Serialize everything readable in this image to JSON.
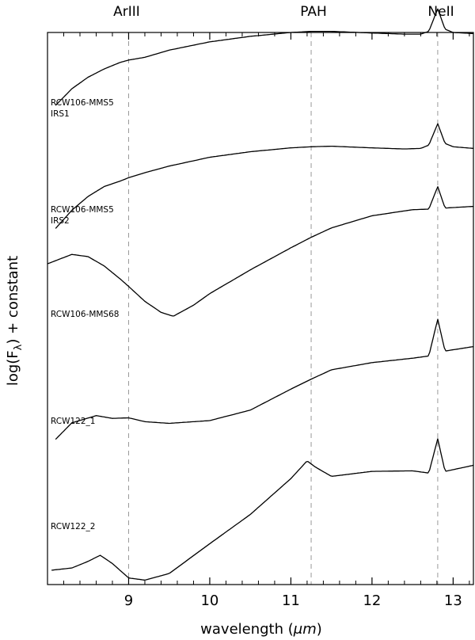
{
  "chart_data": {
    "type": "line",
    "xlabel_prefix": "wavelength (",
    "xlabel_unit": "μm",
    "xlabel_suffix": ")",
    "ylabel_main": "log(F",
    "ylabel_sub": "λ",
    "ylabel_tail": ") + constant",
    "xlim": [
      8.0,
      13.25
    ],
    "ylim": [
      0,
      10
    ],
    "x_ticks": [
      9,
      10,
      11,
      12,
      13
    ],
    "grid": false,
    "legend": "none",
    "lines": [
      {
        "label": "ArIII",
        "x": 9.0
      },
      {
        "label": "PAH",
        "x": 11.25
      },
      {
        "label": "NeII",
        "x": 12.81
      }
    ],
    "series": [
      {
        "name": "RCW106-MMS5\nIRS1",
        "x": [
          8.1,
          8.3,
          8.5,
          8.7,
          8.9,
          9.0,
          9.2,
          9.5,
          10.0,
          10.5,
          11.0,
          11.25,
          11.5,
          12.0,
          12.4,
          12.6,
          12.7,
          12.81,
          12.9,
          13.0,
          13.25
        ],
        "y": [
          8.68,
          8.98,
          9.19,
          9.34,
          9.46,
          9.5,
          9.55,
          9.68,
          9.83,
          9.93,
          10.0,
          10.02,
          10.02,
          9.99,
          9.97,
          9.97,
          10.02,
          10.43,
          10.06,
          10.0,
          9.98
        ]
      },
      {
        "name": "RCW106-MMS5\nIRS2",
        "x": [
          8.1,
          8.3,
          8.5,
          8.7,
          8.9,
          9.0,
          9.2,
          9.5,
          10.0,
          10.5,
          11.0,
          11.25,
          11.5,
          12.0,
          12.4,
          12.6,
          12.7,
          12.81,
          12.9,
          13.0,
          13.25
        ],
        "y": [
          6.45,
          6.78,
          7.03,
          7.21,
          7.31,
          7.37,
          7.46,
          7.58,
          7.74,
          7.84,
          7.91,
          7.93,
          7.94,
          7.91,
          7.89,
          7.9,
          7.96,
          8.35,
          7.99,
          7.93,
          7.9
        ]
      },
      {
        "name": "RCW106-MMS68",
        "x": [
          8.0,
          8.3,
          8.5,
          8.7,
          8.9,
          9.0,
          9.2,
          9.4,
          9.55,
          9.8,
          10.0,
          10.5,
          11.0,
          11.25,
          11.5,
          12.0,
          12.5,
          12.7,
          12.81,
          12.9,
          13.25
        ],
        "y": [
          5.81,
          5.98,
          5.94,
          5.77,
          5.53,
          5.4,
          5.13,
          4.93,
          4.86,
          5.06,
          5.27,
          5.7,
          6.1,
          6.29,
          6.46,
          6.68,
          6.79,
          6.8,
          7.21,
          6.82,
          6.85
        ]
      },
      {
        "name": "RCW122_1",
        "x": [
          8.1,
          8.3,
          8.6,
          8.8,
          9.0,
          9.2,
          9.5,
          10.0,
          10.5,
          11.0,
          11.25,
          11.5,
          12.0,
          12.5,
          12.7,
          12.81,
          12.9,
          13.25
        ],
        "y": [
          2.63,
          2.93,
          3.06,
          3.01,
          3.02,
          2.95,
          2.92,
          2.97,
          3.16,
          3.54,
          3.72,
          3.89,
          4.02,
          4.1,
          4.14,
          4.81,
          4.23,
          4.31
        ]
      },
      {
        "name": "RCW122_2",
        "x": [
          8.05,
          8.3,
          8.5,
          8.65,
          8.8,
          9.0,
          9.2,
          9.5,
          10.0,
          10.5,
          11.0,
          11.2,
          11.3,
          11.5,
          12.0,
          12.5,
          12.7,
          12.81,
          12.9,
          13.25
        ],
        "y": [
          0.26,
          0.3,
          0.42,
          0.53,
          0.38,
          0.12,
          0.08,
          0.2,
          0.74,
          1.27,
          1.92,
          2.24,
          2.13,
          1.96,
          2.05,
          2.06,
          2.02,
          2.64,
          2.05,
          2.16
        ]
      }
    ]
  }
}
